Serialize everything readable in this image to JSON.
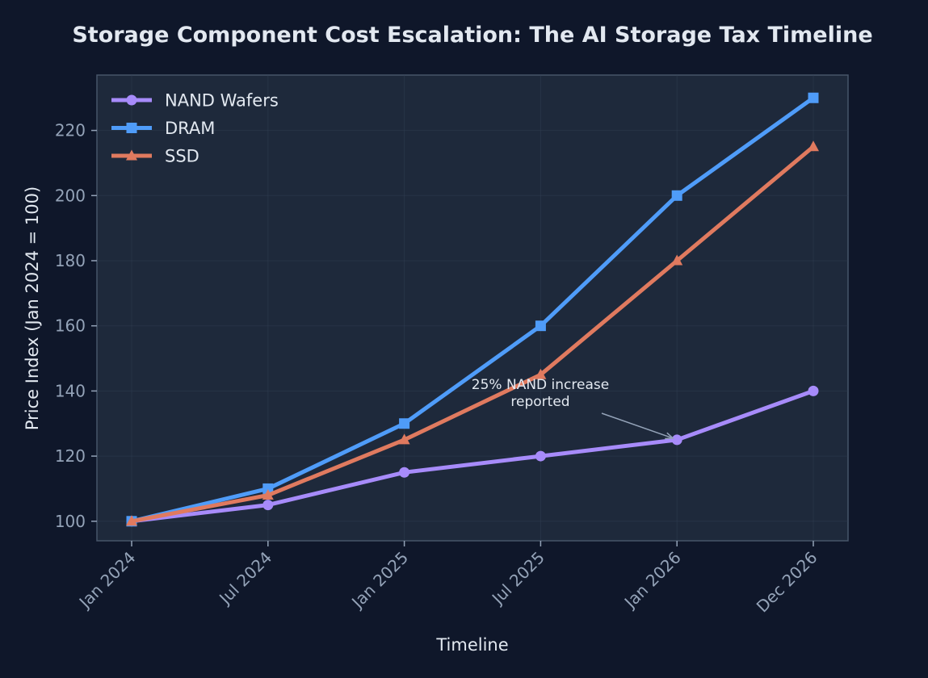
{
  "chart_data": {
    "type": "line",
    "title": "Storage Component Cost Escalation: The AI Storage Tax Timeline",
    "xlabel": "Timeline",
    "ylabel": "Price Index (Jan 2024 = 100)",
    "categories": [
      "Jan 2024",
      "Jul 2024",
      "Jan 2025",
      "Jul 2025",
      "Jan 2026",
      "Dec 2026"
    ],
    "ylim": [
      94,
      237
    ],
    "yticks": [
      100,
      120,
      140,
      160,
      180,
      200,
      220
    ],
    "grid": true,
    "legend_position": "top-left",
    "series": [
      {
        "name": "NAND Wafers",
        "color": "#a78bfa",
        "marker": "circle",
        "values": [
          100,
          105,
          115,
          120,
          125,
          140
        ]
      },
      {
        "name": "DRAM",
        "color": "#4f9cf9",
        "marker": "square",
        "values": [
          100,
          110,
          130,
          160,
          200,
          230
        ]
      },
      {
        "name": "SSD",
        "color": "#e07a5f",
        "marker": "triangle",
        "values": [
          100,
          108,
          125,
          145,
          180,
          215
        ]
      }
    ],
    "annotations": [
      {
        "text_lines": [
          "25% NAND increase",
          "reported"
        ],
        "target_category": "Jan 2026",
        "target_value": 125
      }
    ]
  },
  "colors": {
    "background": "#0f172a",
    "plot_background": "#1e293b",
    "grid": "#334155",
    "text": "#e2e8f0",
    "tick": "#94a3b8"
  }
}
